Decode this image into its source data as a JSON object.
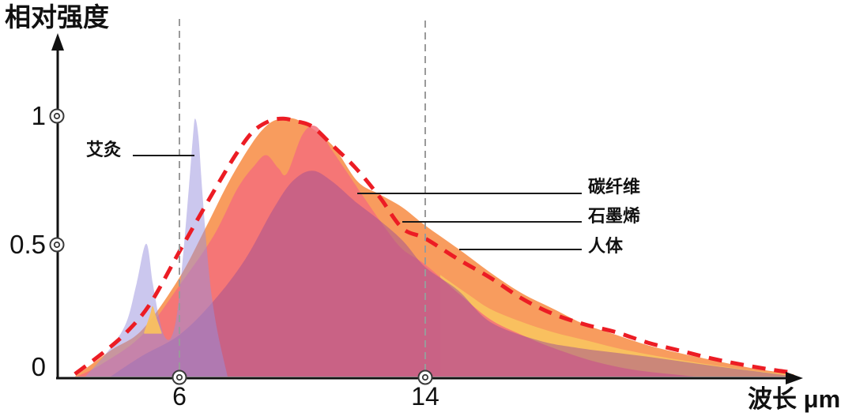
{
  "figure": {
    "y_axis_title": "相对强度",
    "x_axis_title": "波长 μm",
    "y_ticks": [
      {
        "label": "1",
        "value": 1
      },
      {
        "label": "0.5",
        "value": 0.5
      },
      {
        "label": "0",
        "value": 0
      }
    ],
    "x_ticks": [
      {
        "label": "6",
        "value": 6
      },
      {
        "label": "14",
        "value": 14
      }
    ],
    "annotations": [
      {
        "label": "艾灸"
      },
      {
        "label": "碳纤维"
      },
      {
        "label": "石墨烯"
      },
      {
        "label": "人体"
      }
    ]
  },
  "colors": {
    "orange": "#F89C5E",
    "gold": "#F9C05F",
    "pink": "#F4707A",
    "mauve": "#9E4D94",
    "lavender": "#978FDE",
    "dash_red": "#EC1C24",
    "grid_gray": "#9A9A9A",
    "axis": "#111111"
  },
  "chart_data": {
    "type": "area",
    "title": "",
    "xlabel": "波长 μm",
    "ylabel": "相对强度",
    "x_unit": "μm",
    "x_range": [
      2,
      26.5
    ],
    "y_range": [
      0,
      1
    ],
    "x_tick_values": [
      6,
      14
    ],
    "y_tick_values": [
      0,
      0.5,
      1
    ],
    "grid": "two vertical dashed guides at x=6 and x=14",
    "legend_position": "inline leader-line annotations",
    "series": [
      {
        "id": "graphene-curve",
        "name": "石墨烯",
        "kind": "area",
        "color_key": "orange",
        "fill_opacity": 1,
        "points": [
          [
            2.6,
            0
          ],
          [
            3.76,
            0.1
          ],
          [
            4.79,
            0.18
          ],
          [
            6.0,
            0.38
          ],
          [
            6.85,
            0.57
          ],
          [
            7.62,
            0.75
          ],
          [
            8.39,
            0.9
          ],
          [
            8.91,
            0.97
          ],
          [
            9.37,
            0.99
          ],
          [
            9.94,
            0.98
          ],
          [
            10.96,
            0.89
          ],
          [
            11.79,
            0.75
          ],
          [
            12.51,
            0.7
          ],
          [
            13.25,
            0.65
          ],
          [
            14.0,
            0.58
          ],
          [
            15.08,
            0.49
          ],
          [
            16.11,
            0.4
          ],
          [
            17.14,
            0.32
          ],
          [
            18.17,
            0.26
          ],
          [
            19.2,
            0.2
          ],
          [
            20.22,
            0.16
          ],
          [
            21.25,
            0.12
          ],
          [
            22.28,
            0.09
          ],
          [
            23.31,
            0.064
          ],
          [
            24.6,
            0.033
          ],
          [
            26.0,
            0.009
          ]
        ]
      },
      {
        "id": "gold-sliver",
        "name": "",
        "kind": "area",
        "color_key": "gold",
        "fill_opacity": 1,
        "points": [
          [
            14.49,
            0.39
          ],
          [
            15.34,
            0.32
          ],
          [
            16.11,
            0.26
          ],
          [
            17.14,
            0.21
          ],
          [
            18.17,
            0.17
          ],
          [
            19.2,
            0.14
          ],
          [
            20.22,
            0.11
          ],
          [
            21.25,
            0.085
          ],
          [
            22.28,
            0.064
          ],
          [
            23.31,
            0.045
          ],
          [
            24.6,
            0.024
          ],
          [
            25.96,
            0.006
          ]
        ]
      },
      {
        "id": "carbon-fiber-curve",
        "name": "碳纤维",
        "kind": "area",
        "color_key": "pink",
        "fill_opacity": 0.85,
        "points": [
          [
            2.66,
            0
          ],
          [
            3.5,
            0.05
          ],
          [
            4.79,
            0.16
          ],
          [
            6.0,
            0.35
          ],
          [
            7.11,
            0.54
          ],
          [
            7.88,
            0.72
          ],
          [
            8.44,
            0.81
          ],
          [
            8.83,
            0.85
          ],
          [
            9.22,
            0.8
          ],
          [
            9.5,
            0.78
          ],
          [
            10.01,
            0.93
          ],
          [
            10.45,
            0.96
          ],
          [
            10.96,
            0.87
          ],
          [
            11.48,
            0.78
          ],
          [
            11.99,
            0.69
          ],
          [
            12.64,
            0.58
          ],
          [
            13.25,
            0.49
          ],
          [
            14.0,
            0.43
          ],
          [
            15.08,
            0.32
          ],
          [
            16.11,
            0.22
          ],
          [
            17.14,
            0.16
          ],
          [
            18.17,
            0.11
          ],
          [
            19.45,
            0.06
          ],
          [
            20.74,
            0.027
          ],
          [
            22.28,
            0.006
          ],
          [
            22.8,
            0
          ]
        ]
      },
      {
        "id": "mauve-silhouette",
        "name": "",
        "kind": "area",
        "color_key": "mauve",
        "fill_opacity": 0.5,
        "points": [
          [
            3.76,
            0
          ],
          [
            4.79,
            0.08
          ],
          [
            6.0,
            0.16
          ],
          [
            7.11,
            0.29
          ],
          [
            8.14,
            0.45
          ],
          [
            9.04,
            0.64
          ],
          [
            9.68,
            0.75
          ],
          [
            10.32,
            0.79
          ],
          [
            10.96,
            0.75
          ],
          [
            11.74,
            0.67
          ],
          [
            12.51,
            0.6
          ],
          [
            13.28,
            0.52
          ],
          [
            14.0,
            0.42
          ],
          [
            15.08,
            0.33
          ],
          [
            16.11,
            0.21
          ],
          [
            17.65,
            0.14
          ],
          [
            18.97,
            0.11
          ],
          [
            21.25,
            0.076
          ],
          [
            23.31,
            0.042
          ],
          [
            25.11,
            0.015
          ],
          [
            25.9,
            0.003
          ]
        ]
      },
      {
        "id": "moxibustion-curve",
        "name": "艾灸",
        "kind": "area",
        "color_key": "lavender",
        "fill_opacity": 0.5,
        "points": [
          [
            2.94,
            0
          ],
          [
            3.76,
            0.11
          ],
          [
            4.28,
            0.21
          ],
          [
            4.61,
            0.36
          ],
          [
            4.92,
            0.51
          ],
          [
            5.13,
            0.36
          ],
          [
            5.33,
            0.23
          ],
          [
            5.51,
            0.155
          ],
          [
            5.72,
            0.148
          ],
          [
            5.92,
            0.24
          ],
          [
            6.13,
            0.48
          ],
          [
            6.31,
            0.73
          ],
          [
            6.44,
            0.92
          ],
          [
            6.51,
            0.99
          ],
          [
            6.62,
            0.92
          ],
          [
            6.75,
            0.7
          ],
          [
            6.9,
            0.48
          ],
          [
            7.05,
            0.31
          ],
          [
            7.26,
            0.16
          ],
          [
            7.57,
            0
          ]
        ]
      },
      {
        "id": "gold-wedge",
        "name": "",
        "kind": "area",
        "color_key": "gold",
        "fill_opacity": 0.95,
        "baseline": 0.165,
        "points": [
          [
            4.85,
            0.17
          ],
          [
            5.05,
            0.24
          ],
          [
            5.13,
            0.27
          ],
          [
            5.24,
            0.23
          ],
          [
            5.42,
            0.17
          ]
        ]
      },
      {
        "id": "human-body-curve",
        "name": "人体",
        "kind": "dashed_line",
        "color_key": "dash_red",
        "points": [
          [
            2.6,
            0.01
          ],
          [
            3.5,
            0.09
          ],
          [
            4.28,
            0.17
          ],
          [
            5.05,
            0.28
          ],
          [
            6.0,
            0.48
          ],
          [
            6.72,
            0.63
          ],
          [
            7.36,
            0.76
          ],
          [
            7.88,
            0.86
          ],
          [
            8.39,
            0.94
          ],
          [
            8.91,
            0.98
          ],
          [
            9.37,
            0.99
          ],
          [
            9.81,
            0.98
          ],
          [
            10.32,
            0.96
          ],
          [
            10.96,
            0.89
          ],
          [
            11.74,
            0.8
          ],
          [
            12.51,
            0.69
          ],
          [
            13.25,
            0.57
          ],
          [
            14.0,
            0.53
          ],
          [
            15.08,
            0.45
          ],
          [
            16.11,
            0.38
          ],
          [
            17.14,
            0.3
          ],
          [
            18.17,
            0.24
          ],
          [
            19.2,
            0.2
          ],
          [
            20.22,
            0.17
          ],
          [
            21.25,
            0.13
          ],
          [
            22.28,
            0.1
          ],
          [
            23.31,
            0.07
          ],
          [
            24.34,
            0.045
          ],
          [
            25.24,
            0.027
          ],
          [
            25.8,
            0.018
          ]
        ]
      }
    ]
  }
}
